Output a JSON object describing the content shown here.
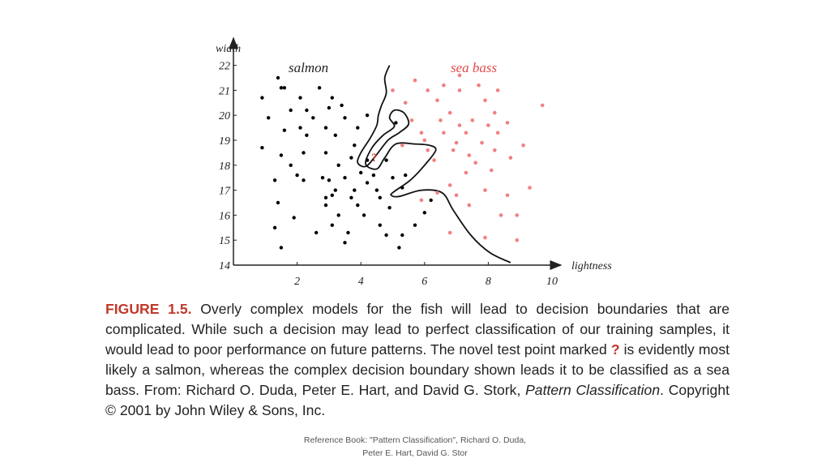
{
  "chart_data": {
    "type": "scatter",
    "ylabel": "width",
    "xlabel": "lightness",
    "xlim": [
      0,
      10.5
    ],
    "ylim": [
      14,
      22
    ],
    "xticks": [
      "2",
      "4",
      "6",
      "8",
      "10"
    ],
    "xtick_values": [
      2,
      4,
      6,
      8,
      10
    ],
    "yticks": [
      "14",
      "15",
      "16",
      "17",
      "18",
      "19",
      "20",
      "21",
      "22"
    ],
    "ytick_values": [
      14,
      15,
      16,
      17,
      18,
      19,
      20,
      21,
      22
    ],
    "grid": false,
    "series": [
      {
        "name": "salmon",
        "color": "#000000",
        "points": [
          [
            1.4,
            21.5
          ],
          [
            1.5,
            21.1
          ],
          [
            1.6,
            21.1
          ],
          [
            2.7,
            21.1
          ],
          [
            0.9,
            20.7
          ],
          [
            2.1,
            20.7
          ],
          [
            3.1,
            20.7
          ],
          [
            3.4,
            20.4
          ],
          [
            1.8,
            20.2
          ],
          [
            2.3,
            20.2
          ],
          [
            3.0,
            20.3
          ],
          [
            1.1,
            19.9
          ],
          [
            2.5,
            19.9
          ],
          [
            3.5,
            19.9
          ],
          [
            4.2,
            20.0
          ],
          [
            2.1,
            19.5
          ],
          [
            2.9,
            19.5
          ],
          [
            3.9,
            19.5
          ],
          [
            5.1,
            19.7
          ],
          [
            1.6,
            19.4
          ],
          [
            2.3,
            19.2
          ],
          [
            3.2,
            19.2
          ],
          [
            3.8,
            18.8
          ],
          [
            0.9,
            18.7
          ],
          [
            2.2,
            18.5
          ],
          [
            2.9,
            18.5
          ],
          [
            1.5,
            18.4
          ],
          [
            3.7,
            18.3
          ],
          [
            4.2,
            18.2
          ],
          [
            4.8,
            18.2
          ],
          [
            1.8,
            18.0
          ],
          [
            3.3,
            18.0
          ],
          [
            4.0,
            17.7
          ],
          [
            2.0,
            17.6
          ],
          [
            2.8,
            17.5
          ],
          [
            3.5,
            17.5
          ],
          [
            4.4,
            17.6
          ],
          [
            5.0,
            17.5
          ],
          [
            1.3,
            17.4
          ],
          [
            2.2,
            17.4
          ],
          [
            3.0,
            17.4
          ],
          [
            4.2,
            17.3
          ],
          [
            3.2,
            17.0
          ],
          [
            3.8,
            17.0
          ],
          [
            4.5,
            17.0
          ],
          [
            5.3,
            17.1
          ],
          [
            3.1,
            16.8
          ],
          [
            2.9,
            16.7
          ],
          [
            3.7,
            16.7
          ],
          [
            4.6,
            16.7
          ],
          [
            6.2,
            16.6
          ],
          [
            1.4,
            16.5
          ],
          [
            2.9,
            16.4
          ],
          [
            3.9,
            16.4
          ],
          [
            4.9,
            16.3
          ],
          [
            3.3,
            16.0
          ],
          [
            4.1,
            16.0
          ],
          [
            6.0,
            16.1
          ],
          [
            1.9,
            15.9
          ],
          [
            3.1,
            15.6
          ],
          [
            4.6,
            15.6
          ],
          [
            5.7,
            15.6
          ],
          [
            2.6,
            15.3
          ],
          [
            3.6,
            15.3
          ],
          [
            4.8,
            15.2
          ],
          [
            5.3,
            15.2
          ],
          [
            3.5,
            14.9
          ],
          [
            5.2,
            14.7
          ],
          [
            1.3,
            15.5
          ],
          [
            1.5,
            14.7
          ],
          [
            5.4,
            17.6
          ]
        ]
      },
      {
        "name": "sea bass",
        "color": "#f08080",
        "points": [
          [
            7.1,
            21.6
          ],
          [
            5.7,
            21.4
          ],
          [
            6.6,
            21.2
          ],
          [
            7.7,
            21.2
          ],
          [
            5.0,
            21.0
          ],
          [
            6.1,
            21.0
          ],
          [
            7.1,
            21.0
          ],
          [
            8.3,
            21.0
          ],
          [
            5.4,
            20.5
          ],
          [
            6.4,
            20.6
          ],
          [
            7.9,
            20.6
          ],
          [
            9.7,
            20.4
          ],
          [
            6.8,
            20.1
          ],
          [
            8.2,
            20.1
          ],
          [
            5.6,
            19.8
          ],
          [
            6.5,
            19.8
          ],
          [
            7.5,
            19.8
          ],
          [
            8.6,
            19.7
          ],
          [
            7.1,
            19.6
          ],
          [
            8.0,
            19.6
          ],
          [
            5.9,
            19.3
          ],
          [
            6.6,
            19.3
          ],
          [
            7.3,
            19.3
          ],
          [
            8.3,
            19.3
          ],
          [
            6.0,
            19.0
          ],
          [
            7.0,
            18.9
          ],
          [
            7.8,
            18.9
          ],
          [
            5.3,
            18.8
          ],
          [
            6.1,
            18.6
          ],
          [
            6.9,
            18.6
          ],
          [
            8.2,
            18.6
          ],
          [
            9.1,
            18.8
          ],
          [
            7.4,
            18.4
          ],
          [
            8.7,
            18.3
          ],
          [
            6.3,
            18.2
          ],
          [
            7.6,
            18.1
          ],
          [
            7.3,
            17.7
          ],
          [
            8.1,
            17.8
          ],
          [
            6.8,
            17.2
          ],
          [
            7.9,
            17.0
          ],
          [
            9.3,
            17.1
          ],
          [
            6.4,
            16.9
          ],
          [
            8.6,
            16.8
          ],
          [
            7.4,
            16.4
          ],
          [
            8.9,
            16.0
          ],
          [
            8.4,
            16.0
          ],
          [
            7.9,
            15.1
          ],
          [
            6.8,
            15.3
          ],
          [
            8.9,
            15.0
          ],
          [
            5.9,
            16.6
          ],
          [
            7.0,
            16.8
          ]
        ]
      },
      {
        "name": "?",
        "color": "#c0392b",
        "points": [
          [
            4.5,
            18.4
          ]
        ]
      }
    ],
    "legend": "inline labels top-left and top-right",
    "labels": {
      "salmon": "salmon",
      "sea_bass": "sea bass",
      "novel": "?"
    },
    "decision_boundary": [
      [
        4.9,
        22.0
      ],
      [
        4.75,
        21.5
      ],
      [
        4.8,
        20.9
      ],
      [
        4.65,
        20.4
      ],
      [
        4.55,
        20.0
      ],
      [
        4.5,
        19.6
      ],
      [
        4.3,
        19.1
      ],
      [
        4.0,
        18.5
      ],
      [
        3.9,
        18.1
      ],
      [
        4.15,
        17.95
      ],
      [
        4.45,
        18.35
      ],
      [
        4.85,
        19.0
      ],
      [
        5.2,
        19.3
      ],
      [
        5.5,
        19.65
      ],
      [
        5.35,
        20.1
      ],
      [
        5.05,
        20.2
      ],
      [
        4.9,
        19.9
      ],
      [
        5.05,
        19.55
      ],
      [
        4.7,
        19.2
      ],
      [
        4.35,
        18.7
      ],
      [
        4.15,
        18.05
      ],
      [
        4.5,
        17.85
      ],
      [
        4.75,
        18.3
      ],
      [
        5.1,
        18.85
      ],
      [
        5.7,
        18.85
      ],
      [
        6.15,
        18.8
      ],
      [
        6.35,
        18.6
      ],
      [
        6.0,
        18.0
      ],
      [
        5.55,
        17.4
      ],
      [
        5.05,
        16.95
      ],
      [
        4.95,
        16.8
      ],
      [
        5.2,
        16.75
      ],
      [
        5.9,
        17.0
      ],
      [
        6.55,
        16.9
      ],
      [
        6.9,
        16.2
      ],
      [
        7.45,
        15.2
      ],
      [
        8.05,
        14.5
      ],
      [
        8.7,
        14.1
      ]
    ]
  },
  "caption": {
    "figure_label": "FIGURE 1.5.",
    "part1": " Overly complex models for the fish will lead to decision boundaries that are complicated. While such a decision may lead to perfect classification of our training samples, it would lead to poor performance on future patterns. The novel test point marked ",
    "marker": "?",
    "part2": " is evidently most likely a salmon, whereas the complex decision boundary shown leads it to be classified as a sea bass. From: Richard O. Duda, Peter E. Hart, and David G. Stork, ",
    "book_title": "Pattern Classification",
    "part3": ". Copyright © 2001 by John Wiley & Sons, Inc."
  },
  "footer": {
    "line1": "Reference Book: \"Pattern Classification\", Richard O. Duda,",
    "line2": "Peter E. Hart, David G. Stor"
  }
}
